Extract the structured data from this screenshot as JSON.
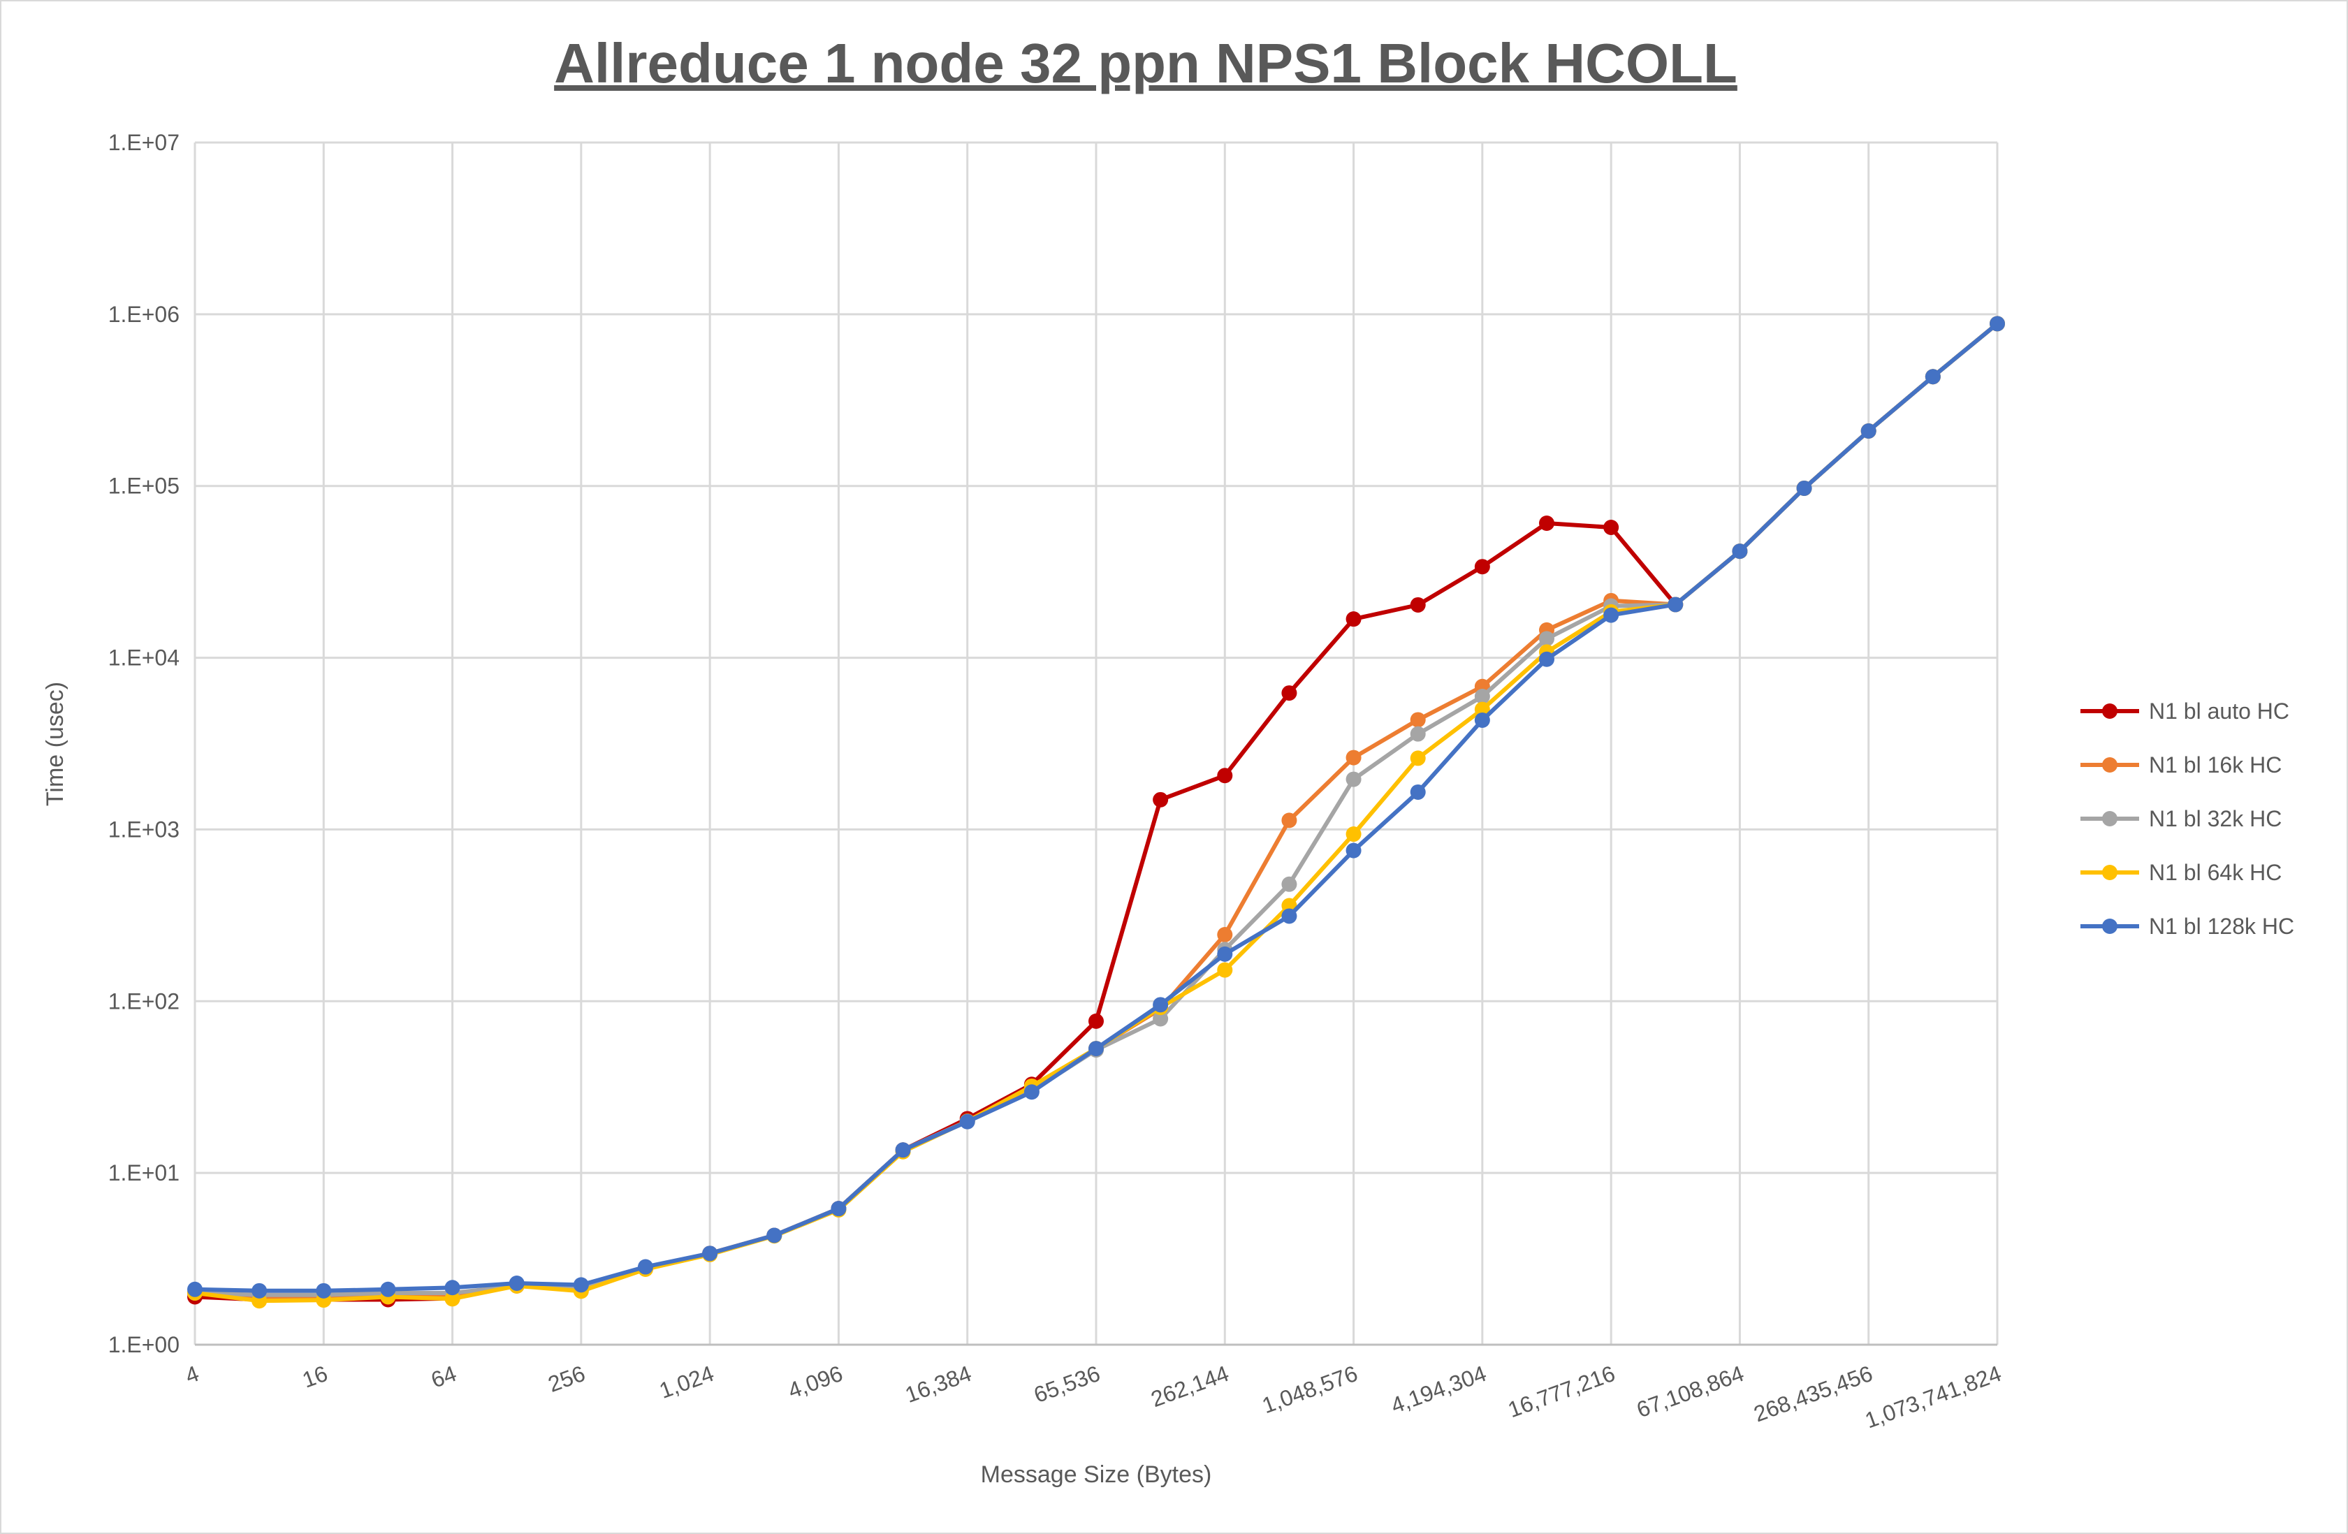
{
  "chart_data": {
    "type": "line",
    "title": "Allreduce 1 node 32 ppn NPS1 Block HCOLL",
    "xlabel": "Message Size (Bytes)",
    "ylabel": "Time (usec)",
    "x_scale": "log2",
    "y_scale": "log10",
    "ylim": [
      1,
      10000000
    ],
    "y_ticks": [
      "1.E+00",
      "1.E+01",
      "1.E+02",
      "1.E+03",
      "1.E+04",
      "1.E+05",
      "1.E+06",
      "1.E+07"
    ],
    "x_tick_labels": [
      "4",
      "16",
      "64",
      "256",
      "1,024",
      "4,096",
      "16,384",
      "65,536",
      "262,144",
      "1,048,576",
      "4,194,304",
      "16,777,216",
      "67,108,864",
      "268,435,456",
      "1,073,741,824"
    ],
    "grid": true,
    "legend_position": "right",
    "x": [
      4,
      8,
      16,
      32,
      64,
      128,
      256,
      512,
      1024,
      2048,
      4096,
      8192,
      16384,
      32768,
      65536,
      131072,
      262144,
      524288,
      1048576,
      2097152,
      4194304,
      8388608,
      16777216,
      33554432,
      67108864,
      134217728,
      268435456,
      536870912,
      1073741824
    ],
    "series": [
      {
        "name": "N1 bl auto HC",
        "color": "#C00000",
        "values": [
          1.9,
          1.83,
          1.83,
          1.83,
          1.86,
          2.23,
          2.1,
          2.78,
          3.4,
          4.33,
          6.2,
          13.6,
          20.7,
          32.8,
          76.5,
          1490,
          2060,
          6230,
          16800,
          20300,
          33900,
          60700,
          57400,
          20400,
          41700,
          97000,
          209000,
          433000,
          881000
        ]
      },
      {
        "name": "N1 bl 16k HC",
        "color": "#ED7D31",
        "values": [
          2.0,
          1.9,
          1.9,
          1.95,
          1.95,
          2.2,
          2.1,
          2.8,
          3.4,
          4.33,
          6.2,
          13.6,
          20,
          31,
          53,
          90,
          244,
          1130,
          2620,
          4350,
          6800,
          14500,
          21500,
          20400,
          41700,
          97000,
          209000,
          433000,
          881000
        ]
      },
      {
        "name": "N1 bl 32k HC",
        "color": "#A5A5A5",
        "values": [
          2.0,
          1.95,
          1.95,
          2.0,
          2.0,
          2.2,
          2.15,
          2.8,
          3.4,
          4.33,
          6.2,
          13.6,
          20,
          30,
          52,
          79,
          200,
          480,
          1960,
          3600,
          5950,
          12900,
          20000,
          20400,
          41700,
          97000,
          209000,
          433000,
          881000
        ]
      },
      {
        "name": "N1 bl 64k HC",
        "color": "#FFC000",
        "values": [
          2.0,
          1.8,
          1.82,
          1.9,
          1.85,
          2.2,
          2.05,
          2.75,
          3.35,
          4.3,
          6.1,
          13.3,
          20,
          32,
          53,
          92,
          152,
          360,
          940,
          2600,
          5000,
          10800,
          18500,
          20400,
          41700,
          97000,
          209000,
          433000,
          881000
        ]
      },
      {
        "name": "N1 bl 128k HC",
        "color": "#4472C4",
        "values": [
          2.1,
          2.06,
          2.06,
          2.1,
          2.15,
          2.28,
          2.23,
          2.84,
          3.4,
          4.33,
          6.2,
          13.6,
          19.9,
          29.6,
          53,
          95.4,
          188,
          313,
          754,
          1650,
          4330,
          9800,
          17700,
          20400,
          41700,
          97000,
          209000,
          433000,
          881000
        ]
      }
    ]
  }
}
